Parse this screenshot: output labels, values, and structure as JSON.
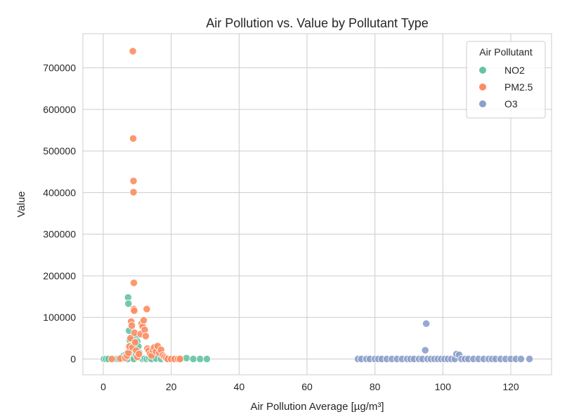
{
  "chart_data": {
    "type": "scatter",
    "title": "Air Pollution vs. Value by Pollutant Type",
    "xlabel": "Air Pollution Average [µg/m³]",
    "ylabel": "Value",
    "xlim": [
      -6,
      132
    ],
    "ylim": [
      -38000,
      782000
    ],
    "xticks": [
      0,
      20,
      40,
      60,
      80,
      100,
      120
    ],
    "yticks": [
      0,
      100000,
      200000,
      300000,
      400000,
      500000,
      600000,
      700000
    ],
    "xtick_labels": [
      "0",
      "20",
      "40",
      "60",
      "80",
      "100",
      "120"
    ],
    "ytick_labels": [
      "0",
      "100000",
      "200000",
      "300000",
      "400000",
      "500000",
      "600000",
      "700000"
    ],
    "grid": true,
    "legend": {
      "title": "Air Pollutant",
      "placement": "upper-right"
    },
    "series": [
      {
        "name": "NO2",
        "color": "#66c2a5",
        "points": [
          [
            0.2,
            0
          ],
          [
            0.8,
            0
          ],
          [
            1.5,
            0
          ],
          [
            3.8,
            0
          ],
          [
            4.5,
            0
          ],
          [
            5.2,
            0
          ],
          [
            5.6,
            2000
          ],
          [
            6.0,
            8000
          ],
          [
            6.3,
            1000
          ],
          [
            6.8,
            12000
          ],
          [
            7.0,
            3000
          ],
          [
            7.2,
            0
          ],
          [
            7.3,
            148000
          ],
          [
            7.4,
            133000
          ],
          [
            7.6,
            68000
          ],
          [
            7.8,
            45000
          ],
          [
            8.1,
            32000
          ],
          [
            8.4,
            20000
          ],
          [
            8.7,
            5000
          ],
          [
            9.0,
            0
          ],
          [
            9.3,
            25000
          ],
          [
            9.6,
            10000
          ],
          [
            9.8,
            53000
          ],
          [
            10.0,
            42000
          ],
          [
            10.3,
            30000
          ],
          [
            10.6,
            15000
          ],
          [
            10.9,
            4000
          ],
          [
            11.2,
            2000
          ],
          [
            11.6,
            0
          ],
          [
            12.2,
            1000
          ],
          [
            12.8,
            0
          ],
          [
            13.5,
            2000
          ],
          [
            14.2,
            0
          ],
          [
            15.5,
            1000
          ],
          [
            17.0,
            0
          ],
          [
            18.5,
            0
          ],
          [
            20.5,
            0
          ],
          [
            22.5,
            0
          ],
          [
            24.5,
            2000
          ],
          [
            26.5,
            0
          ],
          [
            28.5,
            0
          ],
          [
            30.5,
            0
          ]
        ]
      },
      {
        "name": "PM2.5",
        "color": "#fc8d62",
        "points": [
          [
            2.5,
            0
          ],
          [
            5.0,
            1000
          ],
          [
            6.5,
            3000
          ],
          [
            7.0,
            8000
          ],
          [
            7.4,
            15000
          ],
          [
            7.7,
            30000
          ],
          [
            8.0,
            50000
          ],
          [
            8.2,
            90000
          ],
          [
            8.4,
            80000
          ],
          [
            8.6,
            28000
          ],
          [
            8.7,
            740000
          ],
          [
            8.8,
            530000
          ],
          [
            8.9,
            428000
          ],
          [
            8.9,
            401000
          ],
          [
            9.0,
            183000
          ],
          [
            9.0,
            120000
          ],
          [
            9.1,
            116000
          ],
          [
            9.2,
            63000
          ],
          [
            9.4,
            40000
          ],
          [
            9.7,
            20000
          ],
          [
            10.0,
            5000
          ],
          [
            10.5,
            12000
          ],
          [
            11.0,
            60000
          ],
          [
            11.3,
            85000
          ],
          [
            11.6,
            78000
          ],
          [
            11.9,
            93000
          ],
          [
            12.2,
            70000
          ],
          [
            12.5,
            55000
          ],
          [
            12.8,
            120000
          ],
          [
            13.0,
            25000
          ],
          [
            13.4,
            20000
          ],
          [
            13.8,
            12000
          ],
          [
            14.2,
            8000
          ],
          [
            14.6,
            22000
          ],
          [
            15.0,
            28000
          ],
          [
            15.5,
            18000
          ],
          [
            16.0,
            31000
          ],
          [
            16.5,
            14000
          ],
          [
            17.0,
            22000
          ],
          [
            17.5,
            9000
          ],
          [
            18.0,
            5000
          ],
          [
            18.5,
            2000
          ],
          [
            19.0,
            0
          ],
          [
            20.0,
            0
          ],
          [
            21.0,
            0
          ],
          [
            22.0,
            0
          ],
          [
            22.6,
            0
          ]
        ]
      },
      {
        "name": "O3",
        "color": "#8da0cb",
        "points": [
          [
            75.0,
            0
          ],
          [
            76.0,
            0
          ],
          [
            77.5,
            0
          ],
          [
            78.5,
            0
          ],
          [
            80.0,
            0
          ],
          [
            81.0,
            0
          ],
          [
            82.0,
            0
          ],
          [
            83.5,
            0
          ],
          [
            85.0,
            0
          ],
          [
            86.5,
            0
          ],
          [
            88.0,
            0
          ],
          [
            89.5,
            0
          ],
          [
            90.5,
            0
          ],
          [
            91.5,
            0
          ],
          [
            93.0,
            0
          ],
          [
            94.0,
            0
          ],
          [
            94.8,
            21000
          ],
          [
            95.1,
            85000
          ],
          [
            95.5,
            0
          ],
          [
            96.5,
            0
          ],
          [
            97.5,
            0
          ],
          [
            98.5,
            0
          ],
          [
            99.5,
            0
          ],
          [
            100.5,
            0
          ],
          [
            101.5,
            0
          ],
          [
            102.5,
            0
          ],
          [
            103.5,
            0
          ],
          [
            104.0,
            12000
          ],
          [
            104.8,
            10000
          ],
          [
            105.5,
            0
          ],
          [
            106.5,
            0
          ],
          [
            107.5,
            0
          ],
          [
            109.0,
            0
          ],
          [
            110.5,
            0
          ],
          [
            112.0,
            0
          ],
          [
            113.5,
            0
          ],
          [
            114.5,
            0
          ],
          [
            115.5,
            0
          ],
          [
            117.0,
            0
          ],
          [
            118.5,
            0
          ],
          [
            120.0,
            0
          ],
          [
            121.5,
            0
          ],
          [
            123.0,
            0
          ],
          [
            125.5,
            0
          ]
        ]
      }
    ]
  }
}
